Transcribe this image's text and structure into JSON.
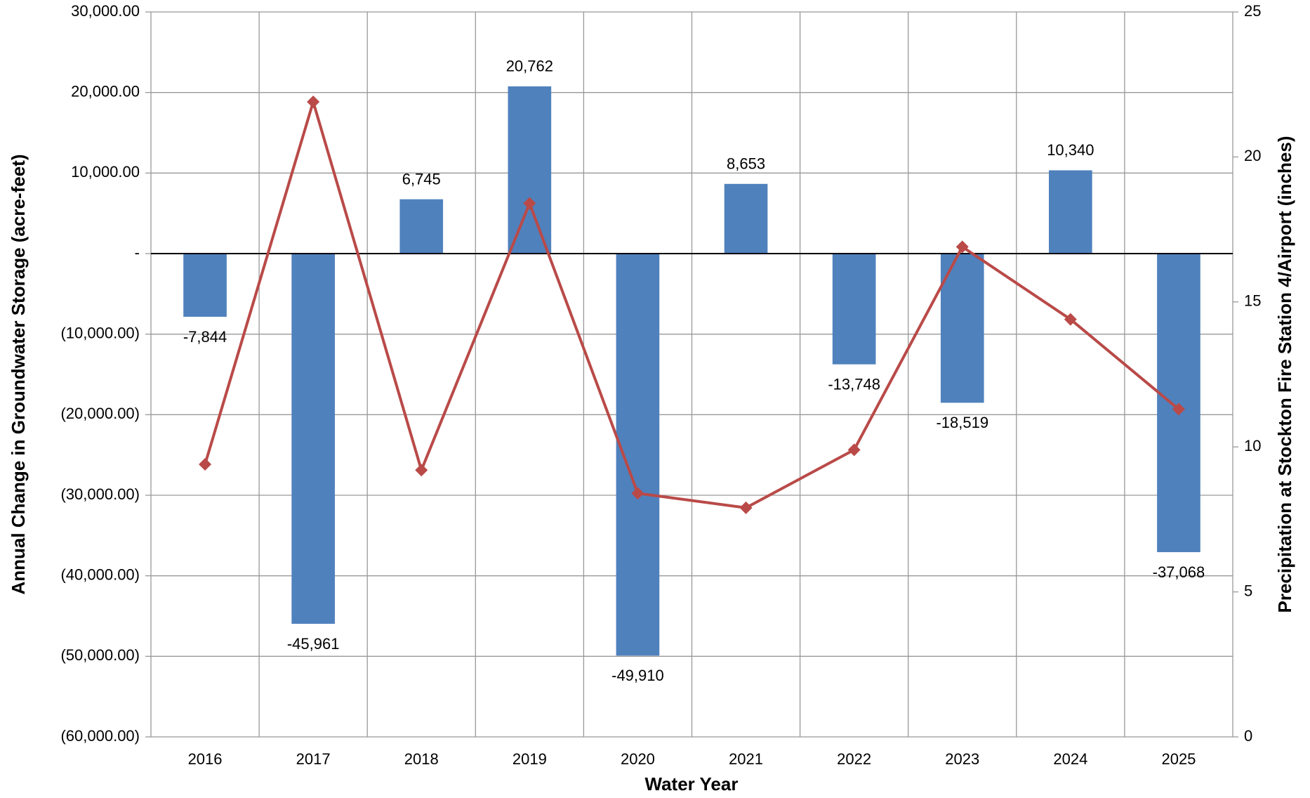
{
  "chart_data": {
    "type": "bar",
    "x_label": "Water Year",
    "y_label": "Annual Change in Groundwater Storage (acre-feet)",
    "y2_label": "Precipitation at Stockton Fire Station 4/Airport (inches)",
    "categories": [
      "2016",
      "2017",
      "2018",
      "2019",
      "2020",
      "2021",
      "2022",
      "2023",
      "2024",
      "2025"
    ],
    "series": [
      {
        "type": "bar",
        "color": "#4f81bd",
        "values": [
          -7844,
          -45961,
          6745,
          20762,
          -49910,
          8653,
          -13748,
          -18519,
          10340,
          -37068
        ],
        "value_labels": [
          "-7,844",
          "-45,961",
          "6,745",
          "20,762",
          "-49,910",
          "8,653",
          "-13,748",
          "-18,519",
          "10,340",
          "-37,068"
        ]
      },
      {
        "type": "line",
        "axis": "y2",
        "color": "#b94a48",
        "values": [
          9.4,
          21.9,
          9.2,
          18.4,
          8.4,
          7.9,
          9.9,
          16.9,
          14.4,
          11.3
        ]
      }
    ],
    "ylim": [
      -60000,
      30000
    ],
    "yticks": [
      {
        "value": -60000,
        "label": "(60,000.00)"
      },
      {
        "value": -50000,
        "label": "(50,000.00)"
      },
      {
        "value": -40000,
        "label": "(40,000.00)"
      },
      {
        "value": -30000,
        "label": "(30,000.00)"
      },
      {
        "value": -20000,
        "label": "(20,000.00)"
      },
      {
        "value": -10000,
        "label": "(10,000.00)"
      },
      {
        "value": 0,
        "label": "-"
      },
      {
        "value": 10000,
        "label": "10,000.00"
      },
      {
        "value": 20000,
        "label": "20,000.00"
      },
      {
        "value": 30000,
        "label": "30,000.00"
      }
    ],
    "y2lim": [
      0,
      25
    ],
    "y2ticks": [
      0,
      5,
      10,
      15,
      20,
      25
    ],
    "grid": true
  }
}
